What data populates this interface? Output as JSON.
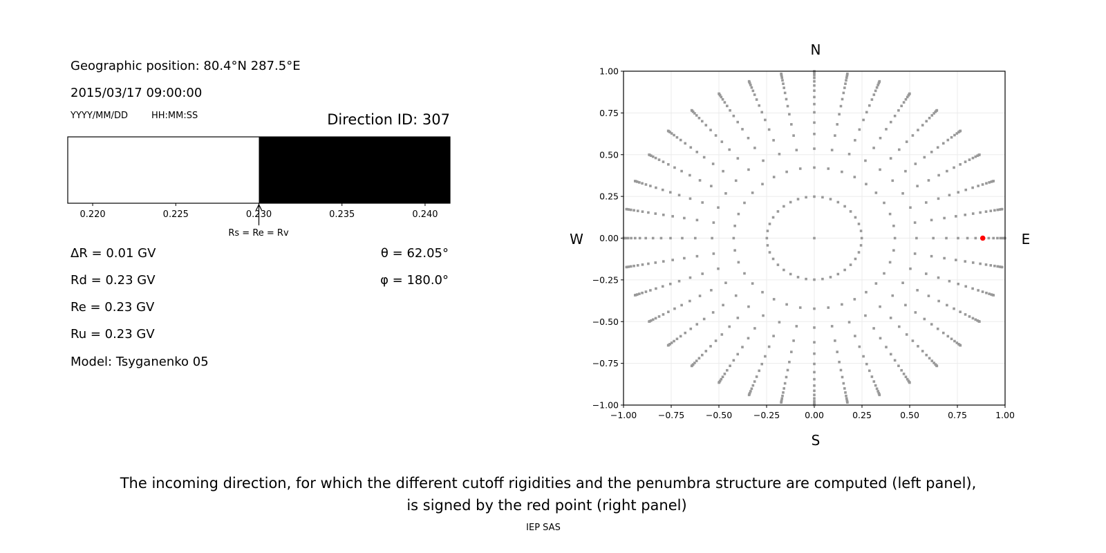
{
  "left_panel": {
    "geo_position": "Geographic position: 80.4°N 287.5°E",
    "datetime": "2015/03/17 09:00:00",
    "date_format_label": "YYYY/MM/DD",
    "time_format_label": "HH:MM:SS",
    "direction_id": "Direction ID: 307",
    "delta_r": "ΔR = 0.01 GV",
    "rd": "Rd = 0.23 GV",
    "re": "Re = 0.23 GV",
    "ru": "Ru = 0.23 GV",
    "model": "Model: Tsyganenko 05",
    "theta": "θ = 62.05°",
    "phi": "φ = 180.0°"
  },
  "caption": {
    "line1": "The incoming direction, for which the different cutoff rigidities and the penumbra structure are computed (left panel),",
    "line2": "is signed by the red point (right panel)",
    "credit": "IEP SAS"
  },
  "chart_data": [
    {
      "type": "bar",
      "subtype": "penumbra-strip",
      "xlim": [
        0.2185,
        0.2415
      ],
      "xticks": [
        "0.220",
        "0.225",
        "0.230",
        "0.235",
        "0.240"
      ],
      "xtick_values": [
        0.22,
        0.225,
        0.23,
        0.235,
        0.24
      ],
      "segments": [
        {
          "from": 0.2185,
          "to": 0.23,
          "state": "allowed",
          "color": "#ffffff"
        },
        {
          "from": 0.23,
          "to": 0.2415,
          "state": "forbidden",
          "color": "#000000"
        }
      ],
      "annotation": {
        "x": 0.23,
        "text": "Rs = Re = Rv"
      }
    },
    {
      "type": "scatter",
      "xlim": [
        -1,
        1
      ],
      "ylim": [
        -1,
        1
      ],
      "grid": true,
      "xticks": [
        "−1.00",
        "−0.75",
        "−0.50",
        "−0.25",
        "0.00",
        "0.25",
        "0.50",
        "0.75",
        "1.00"
      ],
      "yticks": [
        "−1.00",
        "−0.75",
        "−0.50",
        "−0.25",
        "0.00",
        "0.25",
        "0.50",
        "0.75",
        "1.00"
      ],
      "tick_values": [
        -1,
        -0.75,
        -0.5,
        -0.25,
        0,
        0.25,
        0.5,
        0.75,
        1
      ],
      "compass": {
        "top": "N",
        "bottom": "S",
        "left": "W",
        "right": "E"
      },
      "directions": {
        "theta_deg": [
          0,
          14.4,
          25.0,
          32.4,
          38.6,
          43.8,
          48.9,
          53.4,
          57.7,
          62.05,
          66.1,
          69.9,
          73.7,
          77.4,
          81.0,
          84.6,
          88.2
        ],
        "phi_deg_step": 10,
        "color": "#999999"
      },
      "highlight": {
        "theta_deg": 62.05,
        "phi_deg": 180.0,
        "x": 0.883,
        "y": 0.0,
        "color": "#ff0000"
      }
    }
  ]
}
